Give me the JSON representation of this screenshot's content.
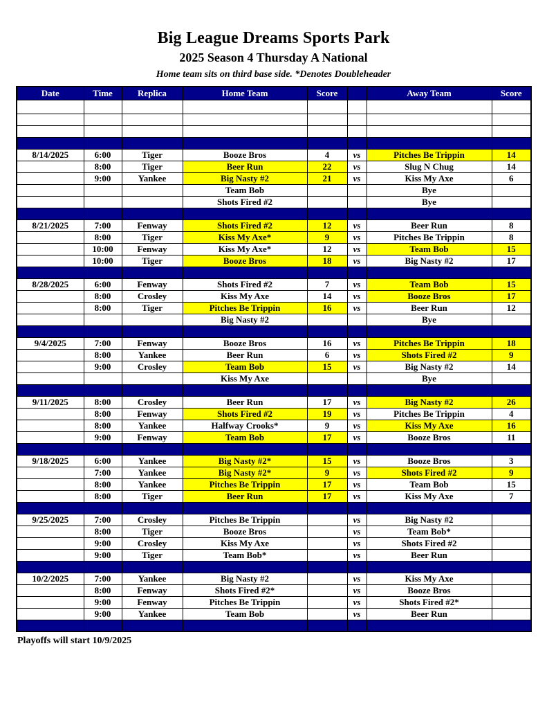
{
  "page": {
    "title": "Big League Dreams Sports Park",
    "subtitle": "2025 Season 4 Thursday A National",
    "note": "Home team sits on third base side.  *Denotes Doubleheader",
    "footer": "Playoffs will start 10/9/2025"
  },
  "colors": {
    "navy": "#00008B",
    "yellow": "#FFFF00",
    "header_text": "#FFFFFF"
  },
  "table": {
    "headers": [
      "Date",
      "Time",
      "Replica",
      "Home Team",
      "Score",
      "",
      "Away Team",
      "Score"
    ],
    "empty_rows": 3,
    "groups": [
      {
        "date": "8/14/2025",
        "rows": [
          {
            "time": "6:00",
            "replica": "Tiger",
            "home": "Booze Bros",
            "home_score": "4",
            "vs": "vs",
            "away": "Pitches Be Trippin",
            "away_score": "14",
            "hl": "away"
          },
          {
            "time": "8:00",
            "replica": "Tiger",
            "home": "Beer Run",
            "home_score": "22",
            "vs": "vs",
            "away": "Slug N Chug",
            "away_score": "14",
            "hl": "home"
          },
          {
            "time": "9:00",
            "replica": "Yankee",
            "home": "Big Nasty #2",
            "home_score": "21",
            "vs": "vs",
            "away": "Kiss My Axe",
            "away_score": "6",
            "hl": "home"
          },
          {
            "time": "",
            "replica": "",
            "home": "Team Bob",
            "home_score": "",
            "vs": "",
            "away": "Bye",
            "away_score": "",
            "hl": "none"
          },
          {
            "time": "",
            "replica": "",
            "home": "Shots Fired #2",
            "home_score": "",
            "vs": "",
            "away": "Bye",
            "away_score": "",
            "hl": "none"
          }
        ]
      },
      {
        "date": "8/21/2025",
        "rows": [
          {
            "time": "7:00",
            "replica": "Fenway",
            "home": "Shots Fired #2",
            "home_score": "12",
            "vs": "vs",
            "away": "Beer Run",
            "away_score": "8",
            "hl": "home"
          },
          {
            "time": "8:00",
            "replica": "Tiger",
            "home": "Kiss My Axe*",
            "home_score": "9",
            "vs": "vs",
            "away": "Pitches Be Trippin",
            "away_score": "8",
            "hl": "home"
          },
          {
            "time": "10:00",
            "replica": "Fenway",
            "home": "Kiss My Axe*",
            "home_score": "12",
            "vs": "vs",
            "away": "Team Bob",
            "away_score": "15",
            "hl": "away"
          },
          {
            "time": "10:00",
            "replica": "Tiger",
            "home": "Booze Bros",
            "home_score": "18",
            "vs": "vs",
            "away": "Big Nasty #2",
            "away_score": "17",
            "hl": "home"
          }
        ]
      },
      {
        "date": "8/28/2025",
        "rows": [
          {
            "time": "6:00",
            "replica": "Fenway",
            "home": "Shots Fired #2",
            "home_score": "7",
            "vs": "vs",
            "away": "Team Bob",
            "away_score": "15",
            "hl": "away"
          },
          {
            "time": "8:00",
            "replica": "Crosley",
            "home": "Kiss My Axe",
            "home_score": "14",
            "vs": "vs",
            "away": "Booze Bros",
            "away_score": "17",
            "hl": "away"
          },
          {
            "time": "8:00",
            "replica": "Tiger",
            "home": "Pitches Be Trippin",
            "home_score": "16",
            "vs": "vs",
            "away": "Beer Run",
            "away_score": "12",
            "hl": "home"
          },
          {
            "time": "",
            "replica": "",
            "home": "Big Nasty #2",
            "home_score": "",
            "vs": "",
            "away": "Bye",
            "away_score": "",
            "hl": "none"
          }
        ]
      },
      {
        "date": "9/4/2025",
        "rows": [
          {
            "time": "7:00",
            "replica": "Fenway",
            "home": "Booze Bros",
            "home_score": "16",
            "vs": "vs",
            "away": "Pitches Be Trippin",
            "away_score": "18",
            "hl": "away"
          },
          {
            "time": "8:00",
            "replica": "Yankee",
            "home": "Beer Run",
            "home_score": "6",
            "vs": "vs",
            "away": "Shots Fired #2",
            "away_score": "9",
            "hl": "away"
          },
          {
            "time": "9:00",
            "replica": "Crosley",
            "home": "Team Bob",
            "home_score": "15",
            "vs": "vs",
            "away": "Big Nasty #2",
            "away_score": "14",
            "hl": "home"
          },
          {
            "time": "",
            "replica": "",
            "home": "Kiss My Axe",
            "home_score": "",
            "vs": "",
            "away": "Bye",
            "away_score": "",
            "hl": "none"
          }
        ]
      },
      {
        "date": "9/11/2025",
        "rows": [
          {
            "time": "8:00",
            "replica": "Crosley",
            "home": "Beer Run",
            "home_score": "17",
            "vs": "vs",
            "away": "Big Nasty #2",
            "away_score": "26",
            "hl": "away"
          },
          {
            "time": "8:00",
            "replica": "Fenway",
            "home": "Shots Fired #2",
            "home_score": "19",
            "vs": "vs",
            "away": "Pitches Be Trippin",
            "away_score": "4",
            "hl": "home"
          },
          {
            "time": "8:00",
            "replica": "Yankee",
            "home": "Halfway Crooks*",
            "home_score": "9",
            "vs": "vs",
            "away": "Kiss My Axe",
            "away_score": "16",
            "hl": "away"
          },
          {
            "time": "9:00",
            "replica": "Fenway",
            "home": "Team Bob",
            "home_score": "17",
            "vs": "vs",
            "away": "Booze Bros",
            "away_score": "11",
            "hl": "home"
          }
        ]
      },
      {
        "date": "9/18/2025",
        "rows": [
          {
            "time": "6:00",
            "replica": "Yankee",
            "home": "Big Nasty #2*",
            "home_score": "15",
            "vs": "vs",
            "away": "Booze Bros",
            "away_score": "3",
            "hl": "home"
          },
          {
            "time": "7:00",
            "replica": "Yankee",
            "home": "Big Nasty #2*",
            "home_score": "9",
            "vs": "vs",
            "away": "Shots Fired #2",
            "away_score": "9",
            "hl": "both"
          },
          {
            "time": "8:00",
            "replica": "Yankee",
            "home": "Pitches Be Trippin",
            "home_score": "17",
            "vs": "vs",
            "away": "Team Bob",
            "away_score": "15",
            "hl": "home"
          },
          {
            "time": "8:00",
            "replica": "Tiger",
            "home": "Beer Run",
            "home_score": "17",
            "vs": "vs",
            "away": "Kiss My Axe",
            "away_score": "7",
            "hl": "home"
          }
        ]
      },
      {
        "date": "9/25/2025",
        "rows": [
          {
            "time": "7:00",
            "replica": "Crosley",
            "home": "Pitches Be Trippin",
            "home_score": "",
            "vs": "vs",
            "away": "Big Nasty #2",
            "away_score": "",
            "hl": "none"
          },
          {
            "time": "8:00",
            "replica": "Tiger",
            "home": "Booze Bros",
            "home_score": "",
            "vs": "vs",
            "away": "Team Bob*",
            "away_score": "",
            "hl": "none"
          },
          {
            "time": "9:00",
            "replica": "Crosley",
            "home": "Kiss My Axe",
            "home_score": "",
            "vs": "vs",
            "away": "Shots Fired #2",
            "away_score": "",
            "hl": "none"
          },
          {
            "time": "9:00",
            "replica": "Tiger",
            "home": "Team Bob*",
            "home_score": "",
            "vs": "vs",
            "away": "Beer Run",
            "away_score": "",
            "hl": "none"
          }
        ]
      },
      {
        "date": "10/2/2025",
        "rows": [
          {
            "time": "7:00",
            "replica": "Yankee",
            "home": "Big Nasty #2",
            "home_score": "",
            "vs": "vs",
            "away": "Kiss My Axe",
            "away_score": "",
            "hl": "none"
          },
          {
            "time": "8:00",
            "replica": "Fenway",
            "home": "Shots Fired #2*",
            "home_score": "",
            "vs": "vs",
            "away": "Booze Bros",
            "away_score": "",
            "hl": "none"
          },
          {
            "time": "9:00",
            "replica": "Fenway",
            "home": "Pitches Be Trippin",
            "home_score": "",
            "vs": "vs",
            "away": "Shots Fired #2*",
            "away_score": "",
            "hl": "none"
          },
          {
            "time": "9:00",
            "replica": "Yankee",
            "home": "Team Bob",
            "home_score": "",
            "vs": "vs",
            "away": "Beer Run",
            "away_score": "",
            "hl": "none"
          }
        ]
      }
    ]
  }
}
